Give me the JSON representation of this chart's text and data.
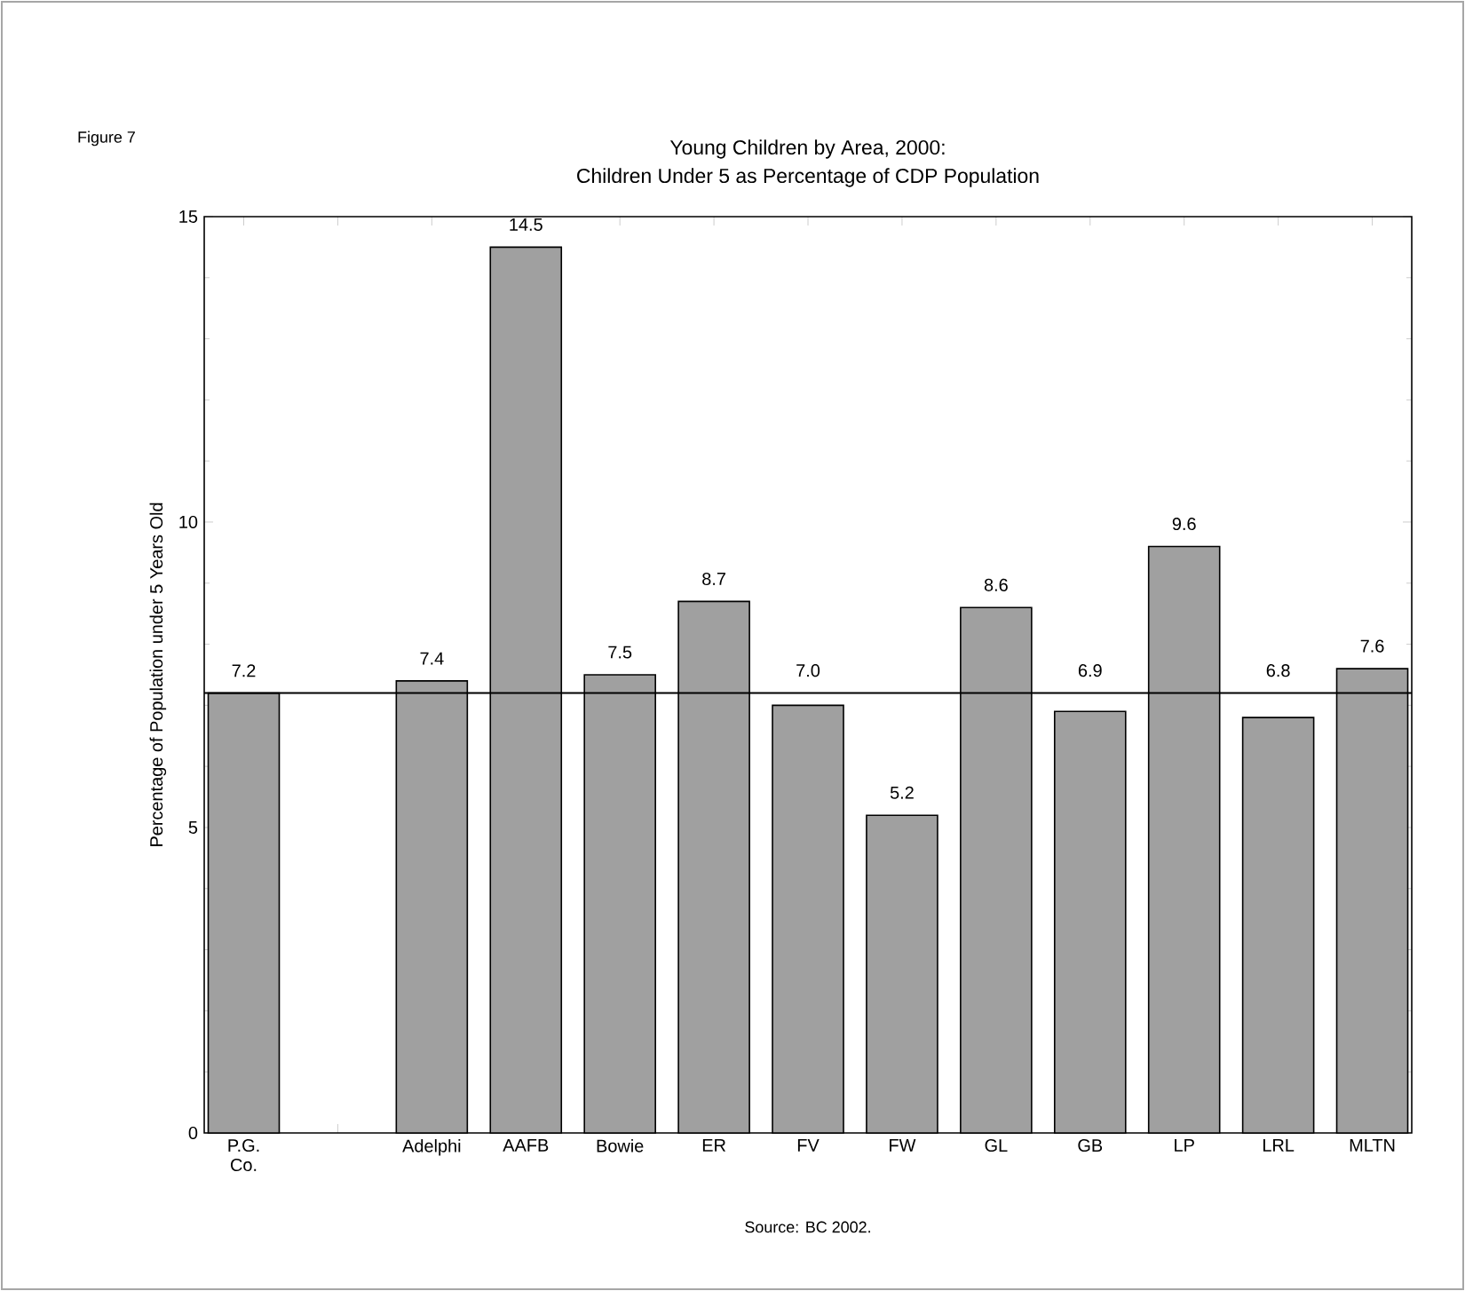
{
  "chart_data": {
    "type": "bar",
    "title": "Young Children by Area, 2000:",
    "subtitle": "Children Under 5 as Percentage of CDP Population",
    "ylabel": "Percentage of Population under 5 Years Old",
    "annotations": [
      "Figure 7",
      "Source: BC 2002."
    ],
    "categories": [
      "P.G. Co.",
      null,
      "Adelphi",
      "AAFB",
      "Bowie",
      "ER",
      "FV",
      "FW",
      "GL",
      "GB",
      "LP",
      "LRL",
      "MLTN"
    ],
    "values": [
      7.2,
      null,
      7.4,
      14.5,
      7.5,
      8.7,
      7.0,
      5.2,
      8.6,
      6.9,
      9.6,
      6.8,
      7.6
    ],
    "value_labels": [
      "7.2",
      null,
      "7.4",
      "14.5",
      "7.5",
      "8.7",
      "7.0",
      "5.2",
      "8.6",
      "6.9",
      "9.6",
      "6.8",
      "7.6"
    ],
    "color": "#a0a0a0",
    "ylim": [
      0,
      15
    ],
    "yticks": [
      0,
      5,
      10,
      15
    ],
    "ref_lines": [
      {
        "axis": "y",
        "value": 7.2,
        "color": "#000000"
      }
    ],
    "grid": false
  }
}
